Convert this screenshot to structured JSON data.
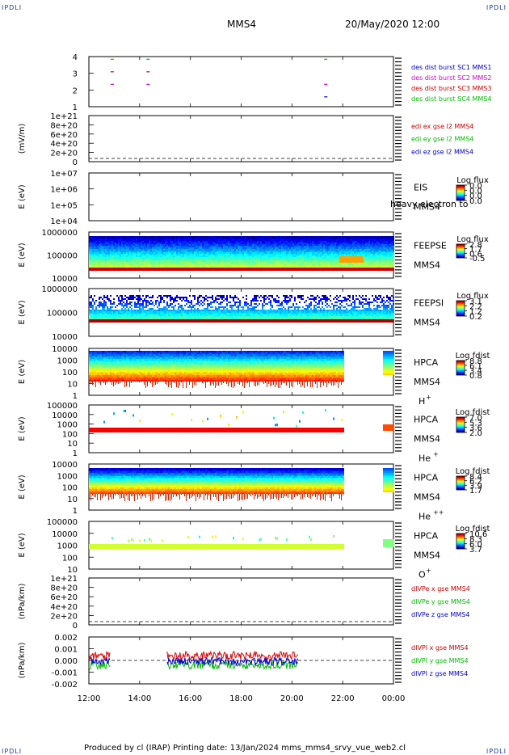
{
  "corner_tag": "IPDLI",
  "header": {
    "spacecraft": "MMS4",
    "datetime": "20/May/2020 12:00"
  },
  "footer": {
    "text": "Produced by cl (IRAP)   Printing date: 13/Jan/2024   mms_mms4_srvy_vue_web2.cl"
  },
  "chart_data": [
    {
      "id": "burst",
      "type": "scatter",
      "ylabel": "",
      "yticks": [
        "4",
        "3",
        "2",
        "1"
      ],
      "legend": [
        {
          "label": "des dist burst SC1 MMS1",
          "color": "#0000cc"
        },
        {
          "label": "des dist burst SC2 MMS2",
          "color": "#cc00cc"
        },
        {
          "label": "des dist burst SC3 MMS3",
          "color": "#cc0000"
        },
        {
          "label": "des dist burst SC4 MMS4",
          "color": "#00bb00"
        }
      ],
      "series": [
        {
          "level": 4,
          "color": "#00bb00",
          "x": [
            "12:55",
            "14:20",
            "21:20"
          ]
        },
        {
          "level": 3,
          "color": "#cc0000",
          "x": [
            "12:55",
            "14:20"
          ]
        },
        {
          "level": 2,
          "color": "#cc00cc",
          "x": [
            "12:55",
            "14:20",
            "21:20"
          ]
        },
        {
          "level": 1,
          "color": "#0000cc",
          "x": [
            "21:20"
          ]
        }
      ]
    },
    {
      "id": "edi",
      "type": "line",
      "ylabel": "(mV/m)",
      "yticks": [
        "1e+21",
        "8e+20",
        "6e+20",
        "4e+20",
        "2e+20",
        "0"
      ],
      "legend": [
        {
          "label": "edi ex gse l2 MMS4",
          "color": "#cc0000"
        },
        {
          "label": "edi ey gse l2 MMS4",
          "color": "#00bb00"
        },
        {
          "label": "edi ez gse l2 MMS4",
          "color": "#0000cc"
        }
      ]
    },
    {
      "id": "eis",
      "type": "heatmap",
      "ylabel": "E (eV)",
      "yticks": [
        "1e+07",
        "1e+06",
        "1e+05",
        "1e+04"
      ],
      "instrument": "EIS",
      "sub": "MMS4",
      "species": "",
      "overlay_text": "heavy electron to",
      "cb_title": "Log flux",
      "cb_ticks": [
        "0.0",
        "0.0",
        "0.0",
        "0.0"
      ]
    },
    {
      "id": "feepse",
      "type": "heatmap",
      "ylabel": "E (eV)",
      "yticks": [
        "1000000",
        "100000",
        "10000"
      ],
      "instrument": "FEEPSE",
      "sub": "MMS4",
      "species": "",
      "cb_title": "Log flux",
      "cb_ticks": [
        "2.8",
        "1.7",
        "0.6",
        "-0.5"
      ]
    },
    {
      "id": "feepsi",
      "type": "heatmap",
      "ylabel": "E (eV)",
      "yticks": [
        "1000000",
        "100000",
        "10000"
      ],
      "instrument": "FEEPSI",
      "sub": "MMS4",
      "species": "",
      "cb_title": "Log flux",
      "cb_ticks": [
        "3.1",
        "2.2",
        "1.2",
        "0.2"
      ]
    },
    {
      "id": "hpca_h",
      "type": "heatmap",
      "ylabel": "E (eV)",
      "yticks": [
        "10000",
        "1000",
        "100",
        "10",
        "1"
      ],
      "instrument": "HPCA",
      "sub": "MMS4",
      "species": "H",
      "charge": "+",
      "cb_title": "Log fdist",
      "cb_ticks": [
        "8.8",
        "6.1",
        "3.4",
        "0.8"
      ]
    },
    {
      "id": "hpca_he1",
      "type": "heatmap",
      "ylabel": "E (eV)",
      "yticks": [
        "100000",
        "10000",
        "1000",
        "100",
        "10",
        "1"
      ],
      "instrument": "HPCA",
      "sub": "MMS4",
      "species": "He",
      "charge": "+",
      "cb_title": "Log fdist",
      "cb_ticks": [
        "7.0",
        "5.3",
        "3.6",
        "2.0"
      ]
    },
    {
      "id": "hpca_he2",
      "type": "heatmap",
      "ylabel": "E (eV)",
      "yticks": [
        "10000",
        "1000",
        "100",
        "10",
        "1"
      ],
      "instrument": "HPCA",
      "sub": "MMS4",
      "species": "He",
      "charge": "++",
      "cb_title": "Log fdist",
      "cb_ticks": [
        "8.4",
        "6.2",
        "3.9",
        "1.7"
      ]
    },
    {
      "id": "hpca_o",
      "type": "heatmap",
      "ylabel": "E (eV)",
      "yticks": [
        "100000",
        "10000",
        "1000",
        "100",
        "10"
      ],
      "instrument": "HPCA",
      "sub": "MMS4",
      "species": "O",
      "charge": "+",
      "cb_title": "Log fdist",
      "cb_ticks": [
        "10.6",
        "8.3",
        "6.0",
        "3.7"
      ]
    },
    {
      "id": "divpe",
      "type": "line",
      "ylabel": "(nPa/km)",
      "yticks": [
        "1e+21",
        "8e+20",
        "6e+20",
        "4e+20",
        "2e+20",
        "0"
      ],
      "legend": [
        {
          "label": "dIVPe x gse MMS4",
          "color": "#cc0000"
        },
        {
          "label": "dIVPe y gse MMS4",
          "color": "#00bb00"
        },
        {
          "label": "dIVPe z gse MMS4",
          "color": "#0000cc"
        }
      ]
    },
    {
      "id": "divpi",
      "type": "line",
      "ylabel": "(nPa/km)",
      "yticks": [
        "0.002",
        "0.001",
        "0.000",
        "-0.001",
        "-0.002"
      ],
      "legend": [
        {
          "label": "dIVPI x gse MMS4",
          "color": "#cc0000"
        },
        {
          "label": "dIVPI y gse MMS4",
          "color": "#00bb00"
        },
        {
          "label": "dIVPI z gse MMS4",
          "color": "#0000cc"
        }
      ],
      "data_intervals": [
        [
          "12:00",
          "12:50"
        ],
        [
          "15:05",
          "20:15"
        ]
      ],
      "ylim": [
        -0.0025,
        0.0025
      ]
    }
  ],
  "x_axis": {
    "ticks": [
      "12:00",
      "14:00",
      "16:00",
      "18:00",
      "20:00",
      "22:00",
      "00:00"
    ],
    "xlim": [
      "12:00",
      "00:00"
    ]
  }
}
